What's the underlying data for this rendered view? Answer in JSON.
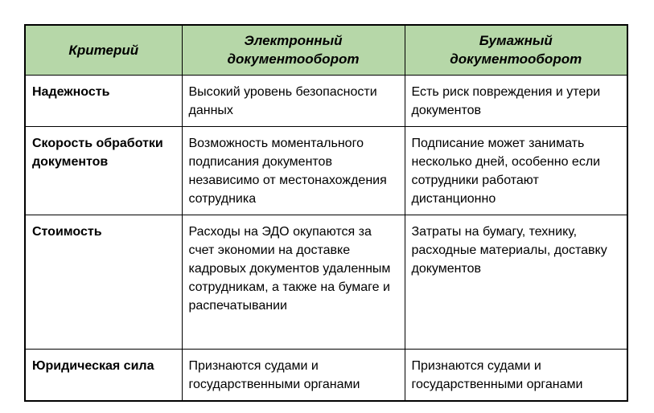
{
  "table": {
    "header": {
      "columns": [
        "Критерий",
        "Электронный документооборот",
        "Бумажный документооборот"
      ]
    },
    "rows": [
      {
        "criterion": "Надежность",
        "electronic": "Высокий уровень безопасности данных",
        "paper": "Есть риск повреждения и утери документов"
      },
      {
        "criterion": "Скорость обработки документов",
        "electronic": "Возможность моментального подписания документов независимо от местонахождения сотрудника",
        "paper": "Подписание может занимать несколько дней, особенно если сотрудники работают дистанционно"
      },
      {
        "criterion": "Стоимость",
        "electronic": "Расходы на ЭДО окупаются за счет экономии на доставке кадровых документов удаленным сотрудникам, а также на бумаге и распечатывании",
        "paper": "Затраты на бумагу, технику, расходные материалы, доставку документов"
      },
      {
        "criterion": "Юридическая сила",
        "electronic": "Признаются судами и государственными органами",
        "paper": "Признаются судами и государственными органами"
      }
    ],
    "colors": {
      "header_bg": "#b6d7a8",
      "border": "#000000",
      "text": "#000000",
      "page_bg": "#ffffff"
    }
  }
}
